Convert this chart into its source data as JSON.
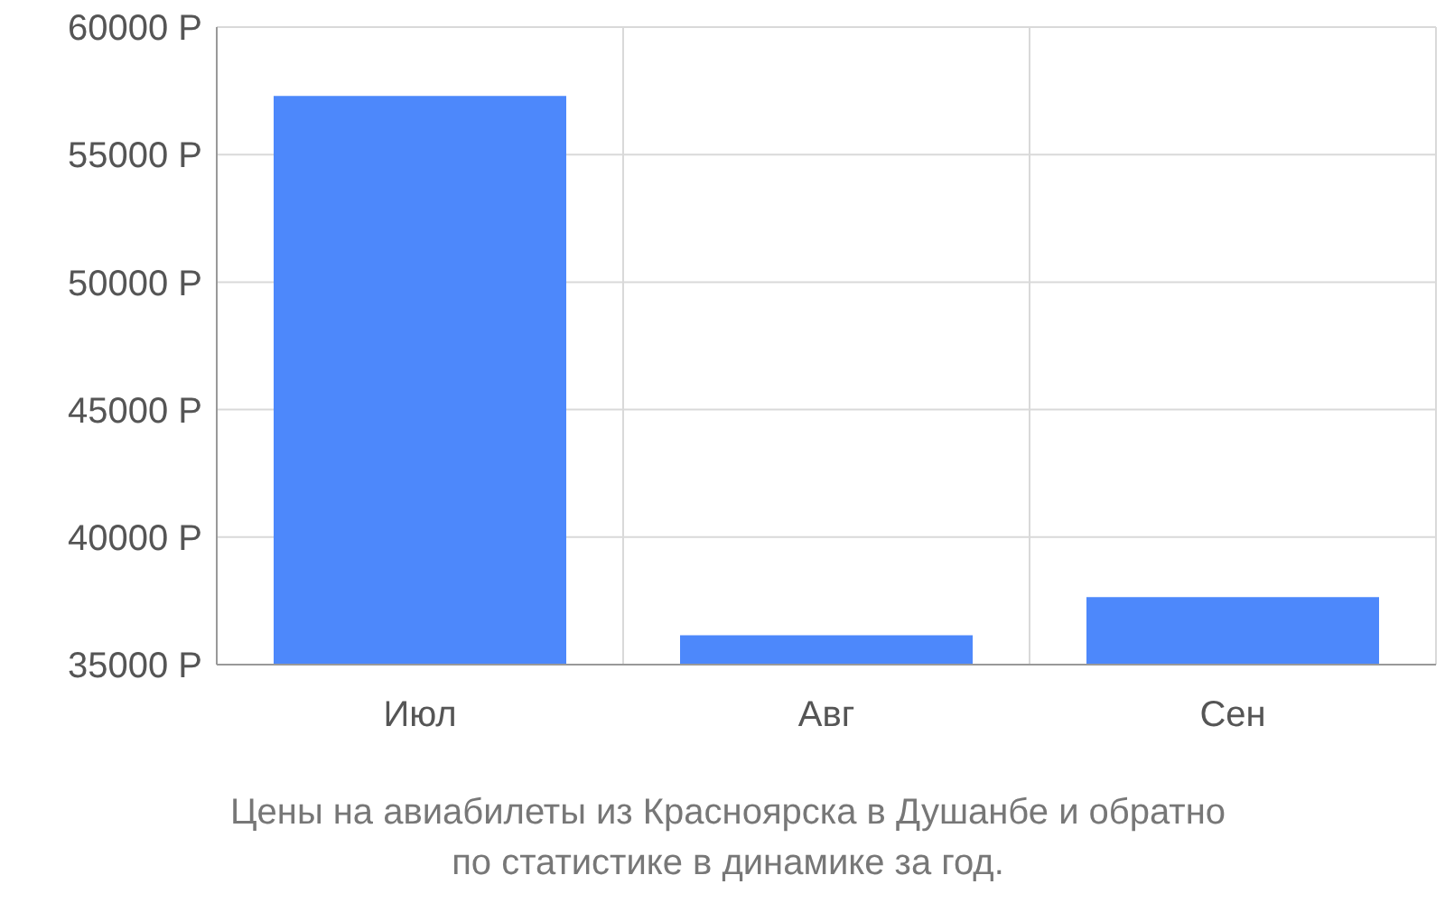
{
  "chart_data": {
    "type": "bar",
    "categories": [
      "Июл",
      "Авг",
      "Сен"
    ],
    "values": [
      57300,
      36150,
      37650
    ],
    "color": "#4d88fb",
    "ylim": [
      35000,
      60000
    ],
    "yticks": [
      {
        "value": 35000,
        "label": "35000 Р"
      },
      {
        "value": 40000,
        "label": "40000 Р"
      },
      {
        "value": 45000,
        "label": "45000 Р"
      },
      {
        "value": 50000,
        "label": "50000 Р"
      },
      {
        "value": 55000,
        "label": "55000 Р"
      },
      {
        "value": 60000,
        "label": "60000 Р"
      }
    ],
    "grid": true,
    "annotations": [
      "Цены на авиабилеты из Красноярска в Душанбе и обратно",
      "по статистике в динамике за год."
    ]
  }
}
